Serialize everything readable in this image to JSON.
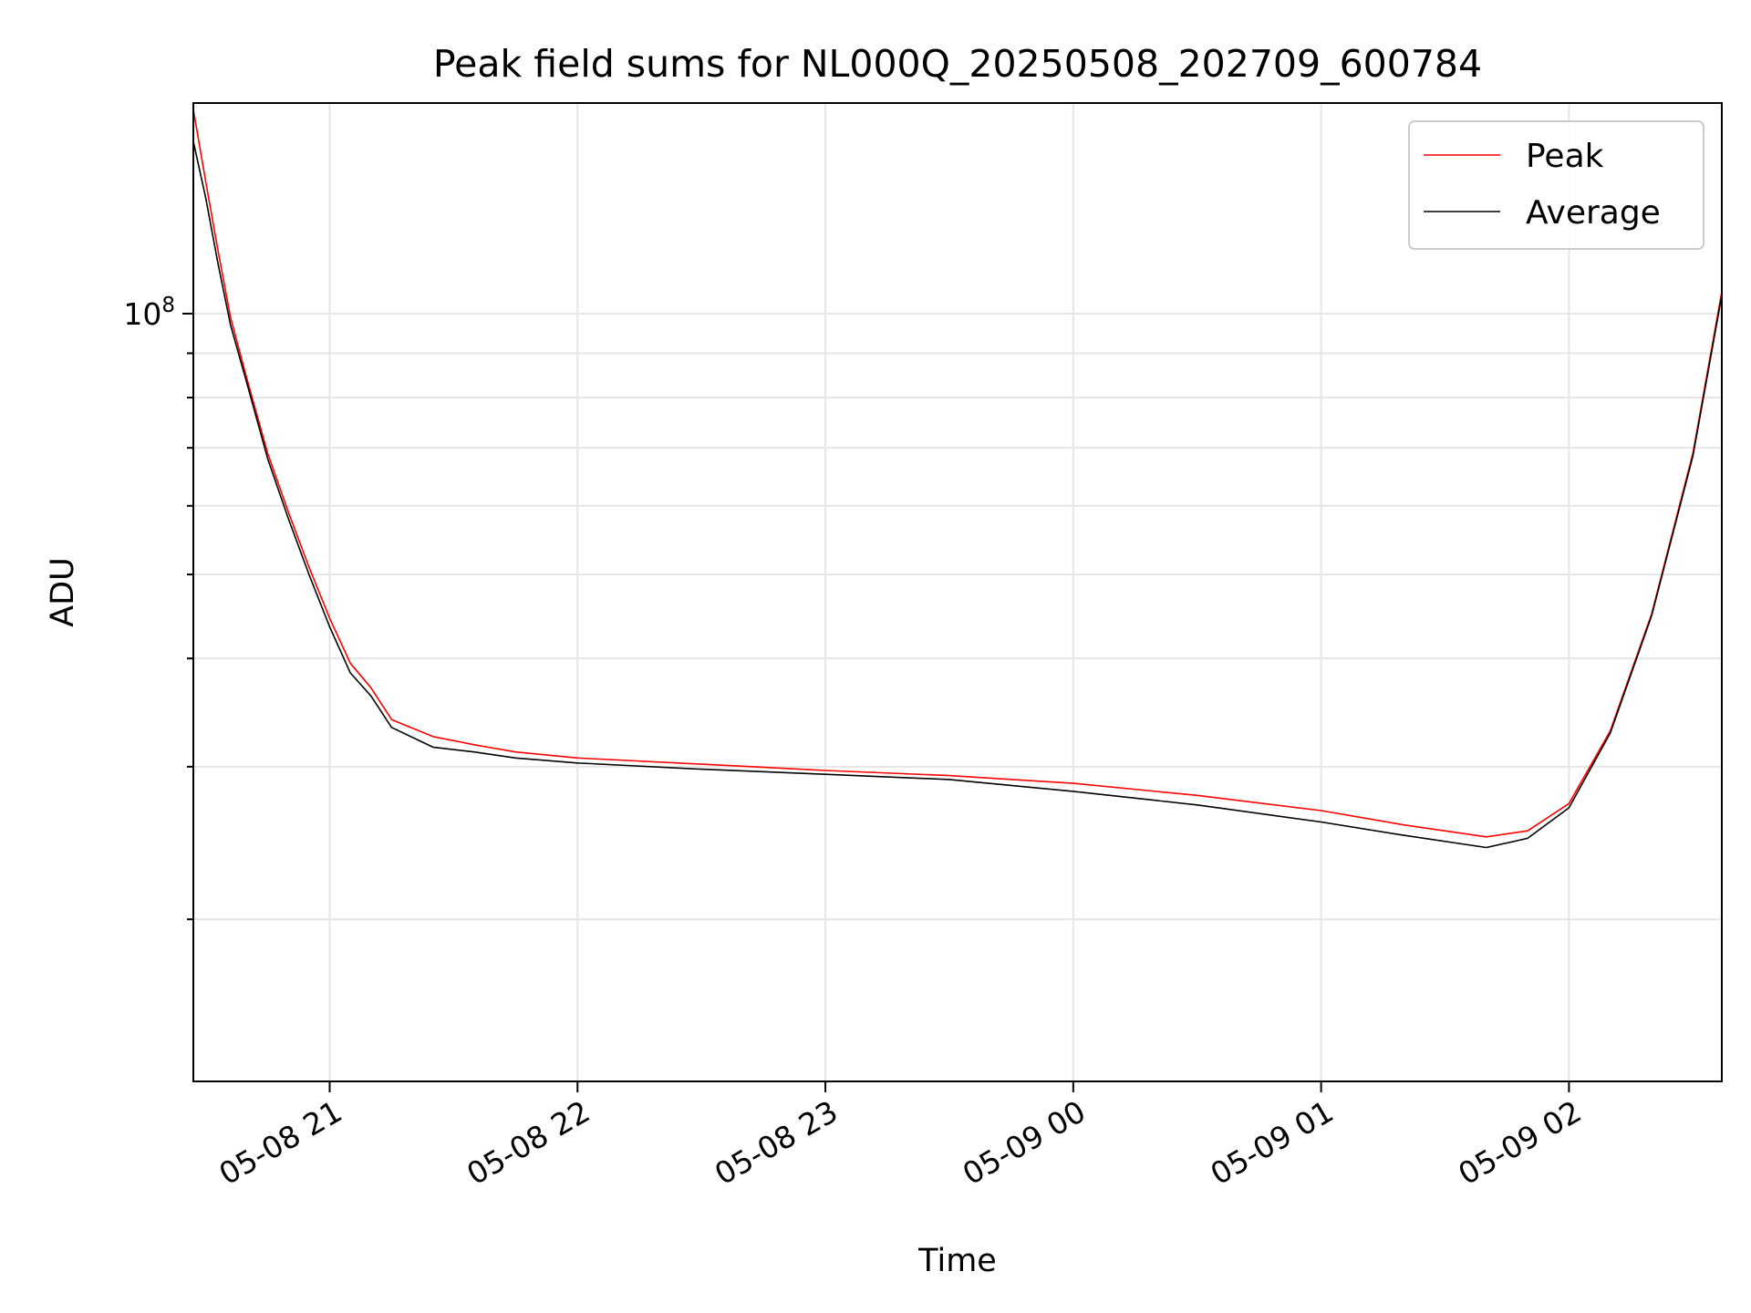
{
  "chart_data": {
    "type": "line",
    "title": "Peak field sums for NL000Q_20250508_202709_600784",
    "xlabel": "Time",
    "ylabel": "ADU",
    "y_scale": "log",
    "ylim": [
      13000000,
      175000000
    ],
    "xlim": [
      "2025-05-08 20:27",
      "2025-05-09 02:37"
    ],
    "x_ticks": [
      {
        "value": "2025-05-08 21:00",
        "label": "05-08 21"
      },
      {
        "value": "2025-05-08 22:00",
        "label": "05-08 22"
      },
      {
        "value": "2025-05-08 23:00",
        "label": "05-08 23"
      },
      {
        "value": "2025-05-09 00:00",
        "label": "05-09 00"
      },
      {
        "value": "2025-05-09 01:00",
        "label": "05-09 01"
      },
      {
        "value": "2025-05-09 02:00",
        "label": "05-09 02"
      }
    ],
    "y_ticks": [
      {
        "value": 100000000,
        "label_base": "10",
        "label_exp": "8"
      }
    ],
    "grid": true,
    "legend_position": "top-right",
    "series": [
      {
        "name": "Peak",
        "color": "#ff0000",
        "x": [
          "2025-05-08 20:27",
          "2025-05-08 20:30",
          "2025-05-08 20:33",
          "2025-05-08 20:36",
          "2025-05-08 20:40",
          "2025-05-08 20:45",
          "2025-05-08 20:50",
          "2025-05-08 20:55",
          "2025-05-08 21:00",
          "2025-05-08 21:05",
          "2025-05-08 21:10",
          "2025-05-08 21:15",
          "2025-05-08 21:25",
          "2025-05-08 21:35",
          "2025-05-08 21:45",
          "2025-05-08 22:00",
          "2025-05-08 22:30",
          "2025-05-08 23:00",
          "2025-05-08 23:30",
          "2025-05-09 00:00",
          "2025-05-09 00:30",
          "2025-05-09 01:00",
          "2025-05-09 01:20",
          "2025-05-09 01:40",
          "2025-05-09 01:50",
          "2025-05-09 02:00",
          "2025-05-09 02:10",
          "2025-05-09 02:20",
          "2025-05-09 02:30",
          "2025-05-09 02:37"
        ],
        "y": [
          172000000,
          142000000,
          118000000,
          99000000,
          84000000,
          69000000,
          59000000,
          51000000,
          44500000,
          39500000,
          37000000,
          34000000,
          32500000,
          31800000,
          31200000,
          30700000,
          30200000,
          29700000,
          29300000,
          28700000,
          27800000,
          26700000,
          25700000,
          24900000,
          25300000,
          27200000,
          33000000,
          45000000,
          69000000,
          106000000
        ]
      },
      {
        "name": "Average",
        "color": "#000000",
        "x": [
          "2025-05-08 20:27",
          "2025-05-08 20:30",
          "2025-05-08 20:33",
          "2025-05-08 20:36",
          "2025-05-08 20:40",
          "2025-05-08 20:45",
          "2025-05-08 20:50",
          "2025-05-08 20:55",
          "2025-05-08 21:00",
          "2025-05-08 21:05",
          "2025-05-08 21:10",
          "2025-05-08 21:15",
          "2025-05-08 21:25",
          "2025-05-08 21:35",
          "2025-05-08 21:45",
          "2025-05-08 22:00",
          "2025-05-08 22:30",
          "2025-05-08 23:00",
          "2025-05-08 23:30",
          "2025-05-09 00:00",
          "2025-05-09 00:30",
          "2025-05-09 01:00",
          "2025-05-09 01:20",
          "2025-05-09 01:40",
          "2025-05-09 01:50",
          "2025-05-09 02:00",
          "2025-05-09 02:10",
          "2025-05-09 02:20",
          "2025-05-09 02:30",
          "2025-05-09 02:37"
        ],
        "y": [
          158000000,
          136000000,
          114000000,
          97000000,
          83000000,
          68000000,
          58000000,
          50000000,
          43500000,
          38500000,
          36200000,
          33300000,
          31600000,
          31200000,
          30700000,
          30300000,
          29800000,
          29400000,
          29000000,
          28100000,
          27100000,
          25900000,
          25000000,
          24200000,
          24800000,
          26900000,
          32800000,
          44800000,
          68500000,
          105000000
        ]
      }
    ]
  }
}
